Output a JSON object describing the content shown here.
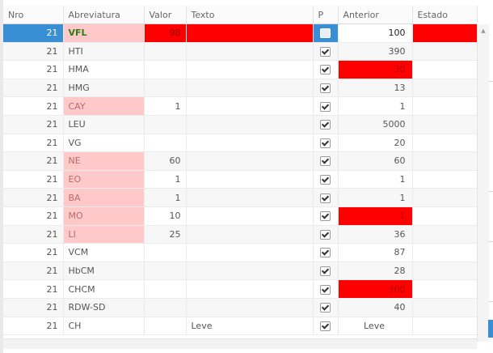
{
  "columns": [
    "Nro",
    "Abreviatura",
    "Valor",
    "Texto",
    "P",
    "Anterior",
    "Estado"
  ],
  "rows": [
    {
      "nro": "21",
      "abr": "VFL",
      "valor": "98",
      "texto": "",
      "p": false,
      "anterior": "100",
      "estado": "",
      "abr_pink": true,
      "valor_red": true,
      "texto_red": true,
      "ant_red": false,
      "estado_red": true,
      "selected": true
    },
    {
      "nro": "21",
      "abr": "HTI",
      "valor": "",
      "texto": "",
      "p": true,
      "anterior": "390",
      "estado": "",
      "abr_pink": false,
      "valor_red": false,
      "texto_red": false,
      "ant_red": false,
      "estado_red": false,
      "selected": false
    },
    {
      "nro": "21",
      "abr": "HMA",
      "valor": "",
      "texto": "",
      "p": true,
      "anterior": "30",
      "estado": "",
      "abr_pink": false,
      "valor_red": false,
      "texto_red": false,
      "ant_red": true,
      "estado_red": false,
      "selected": false
    },
    {
      "nro": "21",
      "abr": "HMG",
      "valor": "",
      "texto": "",
      "p": true,
      "anterior": "13",
      "estado": "",
      "abr_pink": false,
      "valor_red": false,
      "texto_red": false,
      "ant_red": false,
      "estado_red": false,
      "selected": false
    },
    {
      "nro": "21",
      "abr": "CAY",
      "valor": "1",
      "texto": "",
      "p": true,
      "anterior": "1",
      "estado": "",
      "abr_pink": true,
      "valor_red": false,
      "texto_red": false,
      "ant_red": false,
      "estado_red": false,
      "selected": false
    },
    {
      "nro": "21",
      "abr": "LEU",
      "valor": "",
      "texto": "",
      "p": true,
      "anterior": "5000",
      "estado": "",
      "abr_pink": false,
      "valor_red": false,
      "texto_red": false,
      "ant_red": false,
      "estado_red": false,
      "selected": false
    },
    {
      "nro": "21",
      "abr": "VG",
      "valor": "",
      "texto": "",
      "p": true,
      "anterior": "20",
      "estado": "",
      "abr_pink": false,
      "valor_red": false,
      "texto_red": false,
      "ant_red": false,
      "estado_red": false,
      "selected": false
    },
    {
      "nro": "21",
      "abr": "NE",
      "valor": "60",
      "texto": "",
      "p": true,
      "anterior": "60",
      "estado": "",
      "abr_pink": true,
      "valor_red": false,
      "texto_red": false,
      "ant_red": false,
      "estado_red": false,
      "selected": false
    },
    {
      "nro": "21",
      "abr": "EO",
      "valor": "1",
      "texto": "",
      "p": true,
      "anterior": "1",
      "estado": "",
      "abr_pink": true,
      "valor_red": false,
      "texto_red": false,
      "ant_red": false,
      "estado_red": false,
      "selected": false
    },
    {
      "nro": "21",
      "abr": "BA",
      "valor": "1",
      "texto": "",
      "p": true,
      "anterior": "1",
      "estado": "",
      "abr_pink": true,
      "valor_red": false,
      "texto_red": false,
      "ant_red": false,
      "estado_red": false,
      "selected": false
    },
    {
      "nro": "21",
      "abr": "MO",
      "valor": "10",
      "texto": "",
      "p": true,
      "anterior": "1",
      "estado": "",
      "abr_pink": true,
      "valor_red": false,
      "texto_red": false,
      "ant_red": true,
      "estado_red": false,
      "selected": false
    },
    {
      "nro": "21",
      "abr": "LI",
      "valor": "25",
      "texto": "",
      "p": true,
      "anterior": "36",
      "estado": "",
      "abr_pink": true,
      "valor_red": false,
      "texto_red": false,
      "ant_red": false,
      "estado_red": false,
      "selected": false
    },
    {
      "nro": "21",
      "abr": "VCM",
      "valor": "",
      "texto": "",
      "p": true,
      "anterior": "87",
      "estado": "",
      "abr_pink": false,
      "valor_red": false,
      "texto_red": false,
      "ant_red": false,
      "estado_red": false,
      "selected": false
    },
    {
      "nro": "21",
      "abr": "HbCM",
      "valor": "",
      "texto": "",
      "p": true,
      "anterior": "28",
      "estado": "",
      "abr_pink": false,
      "valor_red": false,
      "texto_red": false,
      "ant_red": false,
      "estado_red": false,
      "selected": false
    },
    {
      "nro": "21",
      "abr": "CHCM",
      "valor": "",
      "texto": "",
      "p": true,
      "anterior": "300",
      "estado": "",
      "abr_pink": false,
      "valor_red": false,
      "texto_red": false,
      "ant_red": true,
      "estado_red": false,
      "selected": false
    },
    {
      "nro": "21",
      "abr": "RDW-SD",
      "valor": "",
      "texto": "",
      "p": true,
      "anterior": "40",
      "estado": "",
      "abr_pink": false,
      "valor_red": false,
      "texto_red": false,
      "ant_red": false,
      "estado_red": false,
      "selected": false
    },
    {
      "nro": "21",
      "abr": "CH",
      "valor": "",
      "texto": "Leve",
      "p": true,
      "anterior": "Leve",
      "estado": "",
      "abr_pink": false,
      "valor_red": false,
      "texto_red": false,
      "ant_red": false,
      "estado_red": false,
      "selected": false
    }
  ],
  "colors": {
    "selected_blue": "#3a8fd4",
    "alert_red": "#ff0000",
    "pink": "#ffc9c9",
    "selected_abr_text": "#2e7d12"
  },
  "icons": {
    "checkbox_checked": "check-icon",
    "scroll_up": "chevron-up-icon"
  },
  "scroll_up_glyph": "▲"
}
